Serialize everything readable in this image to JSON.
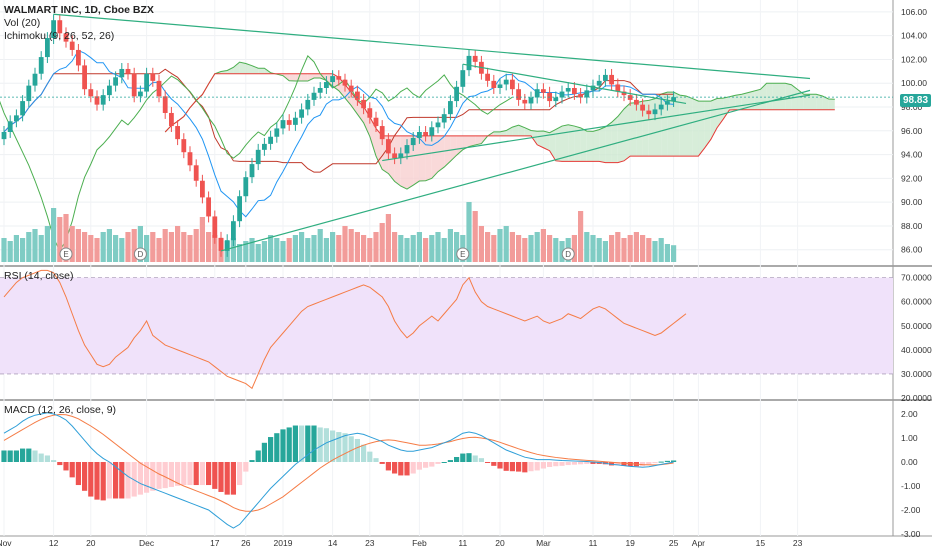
{
  "legend": {
    "symbol": "WALMART INC, 1D, Cboe BZX",
    "vol": "Vol (20)",
    "ichimoku": "Ichimoku (9, 26, 52, 26)",
    "rsi": "RSI (14, close)",
    "macd": "MACD (12, 26, close, 9)"
  },
  "price_label": "98.83",
  "colors": {
    "up": "#26a69a",
    "down": "#ef5350",
    "vol_up": "#7fccc4",
    "vol_down": "#f29c9a",
    "conversion": "#2196f3",
    "base": "#c0392b",
    "lagging": "#4caf50",
    "span_a": "#4caf50",
    "span_b": "#e53935",
    "cloud_green": "#cde9cf",
    "cloud_red": "#f8cfcf",
    "rsi_line": "#f57c46",
    "rsi_band": "#f0e2fa",
    "macd_line": "#2f9fd8",
    "signal_line": "#f57c46",
    "trend": "#2fae80"
  },
  "chart_data": [
    {
      "type": "candlestick",
      "title": "WALMART INC, 1D, Cboe BZX",
      "ylim": [
        84.8,
        107.0
      ],
      "y_ticks": [
        "86.00",
        "88.00",
        "90.00",
        "92.00",
        "94.00",
        "96.00",
        "98.00",
        "100.00",
        "102.00",
        "104.00",
        "106.00"
      ],
      "x_tick_labels": [
        {
          "i": 0,
          "label": "Nov"
        },
        {
          "i": 8,
          "label": "12"
        },
        {
          "i": 14,
          "label": "20"
        },
        {
          "i": 23,
          "label": "Dec"
        },
        {
          "i": 34,
          "label": "17"
        },
        {
          "i": 39,
          "label": "26"
        },
        {
          "i": 45,
          "label": "2019"
        },
        {
          "i": 53,
          "label": "14"
        },
        {
          "i": 59,
          "label": "23"
        },
        {
          "i": 67,
          "label": "Feb"
        },
        {
          "i": 74,
          "label": "11"
        },
        {
          "i": 80,
          "label": "20"
        },
        {
          "i": 87,
          "label": "Mar"
        },
        {
          "i": 95,
          "label": "11"
        },
        {
          "i": 101,
          "label": "19"
        },
        {
          "i": 108,
          "label": "25"
        },
        {
          "i": 112,
          "label": "Apr"
        },
        {
          "i": 122,
          "label": "15"
        },
        {
          "i": 128,
          "label": "23"
        }
      ],
      "candles_close": [
        95.9,
        96.8,
        97.3,
        98.5,
        99.8,
        100.8,
        102.2,
        103.8,
        105.3,
        104.2,
        103.5,
        102.8,
        101.5,
        99.5,
        98.9,
        98.2,
        99.0,
        99.8,
        100.5,
        101.2,
        100.8,
        98.9,
        99.3,
        100.8,
        100.2,
        98.9,
        97.5,
        96.4,
        95.3,
        94.2,
        93.1,
        91.8,
        90.4,
        88.8,
        87.0,
        85.9,
        86.8,
        88.4,
        90.5,
        92.1,
        93.2,
        94.4,
        94.9,
        95.5,
        96.2,
        96.9,
        96.5,
        97.1,
        97.8,
        98.6,
        99.2,
        99.6,
        100.1,
        100.6,
        100.3,
        99.8,
        99.3,
        98.6,
        97.9,
        97.1,
        96.4,
        95.3,
        94.1,
        93.7,
        94.1,
        94.8,
        95.4,
        95.9,
        95.6,
        96.3,
        96.7,
        97.4,
        98.5,
        99.7,
        101.1,
        102.3,
        101.8,
        100.8,
        100.2,
        99.6,
        99.9,
        100.3,
        99.5,
        98.6,
        98.3,
        98.8,
        99.5,
        99.2,
        98.5,
        98.8,
        99.3,
        99.6,
        99.1,
        98.8,
        99.4,
        99.8,
        100.2,
        100.7,
        99.9,
        99.3,
        99.0,
        98.6,
        98.2,
        97.7,
        97.4,
        97.8,
        98.2,
        98.5,
        98.83
      ],
      "candles_raw_note": "",
      "ohlc_scale": "data",
      "volume_relative": [
        0.4,
        0.35,
        0.45,
        0.4,
        0.5,
        0.55,
        0.45,
        0.6,
        0.9,
        0.75,
        0.8,
        0.6,
        0.55,
        0.5,
        0.45,
        0.4,
        0.5,
        0.55,
        0.45,
        0.4,
        0.5,
        0.55,
        0.6,
        0.45,
        0.5,
        0.4,
        0.55,
        0.5,
        0.6,
        0.5,
        0.45,
        0.55,
        0.75,
        0.5,
        0.45,
        0.4,
        0.35,
        0.4,
        0.3,
        0.35,
        0.4,
        0.3,
        0.35,
        0.45,
        0.4,
        0.35,
        0.4,
        0.45,
        0.5,
        0.4,
        0.45,
        0.55,
        0.4,
        0.5,
        0.45,
        0.6,
        0.55,
        0.5,
        0.45,
        0.4,
        0.5,
        0.65,
        0.8,
        0.5,
        0.45,
        0.4,
        0.45,
        0.5,
        0.4,
        0.45,
        0.5,
        0.4,
        0.55,
        0.5,
        0.45,
        1.0,
        0.85,
        0.6,
        0.5,
        0.45,
        0.55,
        0.6,
        0.5,
        0.45,
        0.4,
        0.45,
        0.5,
        0.55,
        0.45,
        0.4,
        0.35,
        0.4,
        0.45,
        0.85,
        0.5,
        0.45,
        0.4,
        0.35,
        0.45,
        0.5,
        0.4,
        0.45,
        0.5,
        0.45,
        0.4,
        0.35,
        0.4,
        0.3,
        0.28
      ],
      "volume_markers": [
        {
          "i": 10,
          "label": "E"
        },
        {
          "i": 22,
          "label": "D"
        },
        {
          "i": 74,
          "label": "E"
        },
        {
          "i": 91,
          "label": "D"
        }
      ]
    },
    {
      "type": "line",
      "title": "RSI (14, close)",
      "ylim": [
        20,
        74
      ],
      "y_ticks": [
        "20.0000",
        "30.0000",
        "40.0000",
        "50.0000",
        "60.0000",
        "70.0000"
      ],
      "band": [
        30,
        70
      ],
      "values": [
        62,
        65,
        68,
        70,
        71,
        72,
        73,
        73,
        72,
        68,
        62,
        55,
        48,
        42,
        38,
        34,
        33,
        34,
        37,
        39,
        41,
        45,
        48,
        52,
        46,
        44,
        42,
        41,
        40,
        39,
        38,
        37,
        36,
        35,
        33,
        31,
        29,
        28,
        27,
        26,
        24,
        30,
        36,
        41,
        44,
        47,
        50,
        53,
        56,
        58,
        59,
        60,
        61,
        62,
        63,
        64,
        65,
        66,
        67,
        66,
        64,
        62,
        58,
        52,
        48,
        45,
        47,
        50,
        52,
        54,
        52,
        55,
        58,
        61,
        67,
        70,
        64,
        60,
        58,
        57,
        56,
        55,
        54,
        53,
        52,
        53,
        54,
        52,
        51,
        52,
        53,
        55,
        54,
        53,
        55,
        57,
        58,
        57,
        55,
        53,
        51,
        50,
        49,
        48,
        47,
        46,
        47,
        49,
        51,
        53,
        55
      ]
    },
    {
      "type": "line",
      "title": "MACD (12, 26, close, 9)",
      "ylim": [
        -3.0,
        2.5
      ],
      "y_ticks": [
        "-3.00",
        "-2.00",
        "-1.00",
        "0.00",
        "1.00",
        "2.00"
      ],
      "macd": [
        1.2,
        1.35,
        1.5,
        1.7,
        1.85,
        1.95,
        2.0,
        2.05,
        2.0,
        1.9,
        1.75,
        1.5,
        1.2,
        0.9,
        0.6,
        0.35,
        0.15,
        0.0,
        -0.2,
        -0.4,
        -0.6,
        -0.75,
        -0.9,
        -1.0,
        -1.1,
        -1.2,
        -1.3,
        -1.4,
        -1.5,
        -1.6,
        -1.7,
        -1.8,
        -1.9,
        -2.0,
        -2.2,
        -2.4,
        -2.6,
        -2.75,
        -2.6,
        -2.3,
        -2.0,
        -1.7,
        -1.4,
        -1.1,
        -0.85,
        -0.6,
        -0.35,
        -0.1,
        0.1,
        0.3,
        0.5,
        0.65,
        0.8,
        0.9,
        1.0,
        1.1,
        1.15,
        1.2,
        1.15,
        1.05,
        0.95,
        0.85,
        0.7,
        0.6,
        0.5,
        0.45,
        0.45,
        0.5,
        0.55,
        0.6,
        0.7,
        0.8,
        0.9,
        1.05,
        1.2,
        1.25,
        1.2,
        1.1,
        0.95,
        0.8,
        0.65,
        0.5,
        0.4,
        0.3,
        0.2,
        0.15,
        0.1,
        0.1,
        0.1,
        0.08,
        0.06,
        0.05,
        0.04,
        0.03,
        0.02,
        0.0,
        -0.02,
        -0.05,
        -0.1,
        -0.12,
        -0.15,
        -0.18,
        -0.2,
        -0.22,
        -0.2,
        -0.15,
        -0.1,
        -0.05,
        0.0
      ],
      "signal": [
        0.9,
        1.05,
        1.2,
        1.35,
        1.5,
        1.65,
        1.78,
        1.88,
        1.95,
        1.98,
        1.97,
        1.9,
        1.8,
        1.65,
        1.5,
        1.33,
        1.15,
        0.95,
        0.75,
        0.55,
        0.35,
        0.15,
        -0.05,
        -0.2,
        -0.35,
        -0.5,
        -0.62,
        -0.75,
        -0.88,
        -1.0,
        -1.1,
        -1.2,
        -1.3,
        -1.4,
        -1.5,
        -1.62,
        -1.75,
        -1.9,
        -2.0,
        -2.05,
        -2.05,
        -2.0,
        -1.9,
        -1.75,
        -1.6,
        -1.45,
        -1.25,
        -1.05,
        -0.85,
        -0.65,
        -0.45,
        -0.25,
        -0.08,
        0.08,
        0.22,
        0.35,
        0.48,
        0.6,
        0.7,
        0.78,
        0.85,
        0.9,
        0.92,
        0.9,
        0.85,
        0.8,
        0.75,
        0.7,
        0.7,
        0.72,
        0.75,
        0.8,
        0.85,
        0.92,
        0.98,
        1.02,
        1.03,
        1.0,
        0.96,
        0.9,
        0.82,
        0.73,
        0.64,
        0.55,
        0.47,
        0.39,
        0.32,
        0.27,
        0.23,
        0.19,
        0.16,
        0.13,
        0.11,
        0.09,
        0.07,
        0.05,
        0.03,
        0.01,
        -0.01,
        -0.03,
        -0.05,
        -0.07,
        -0.09,
        -0.11,
        -0.12,
        -0.12,
        -0.11,
        -0.08,
        -0.04
      ]
    }
  ]
}
